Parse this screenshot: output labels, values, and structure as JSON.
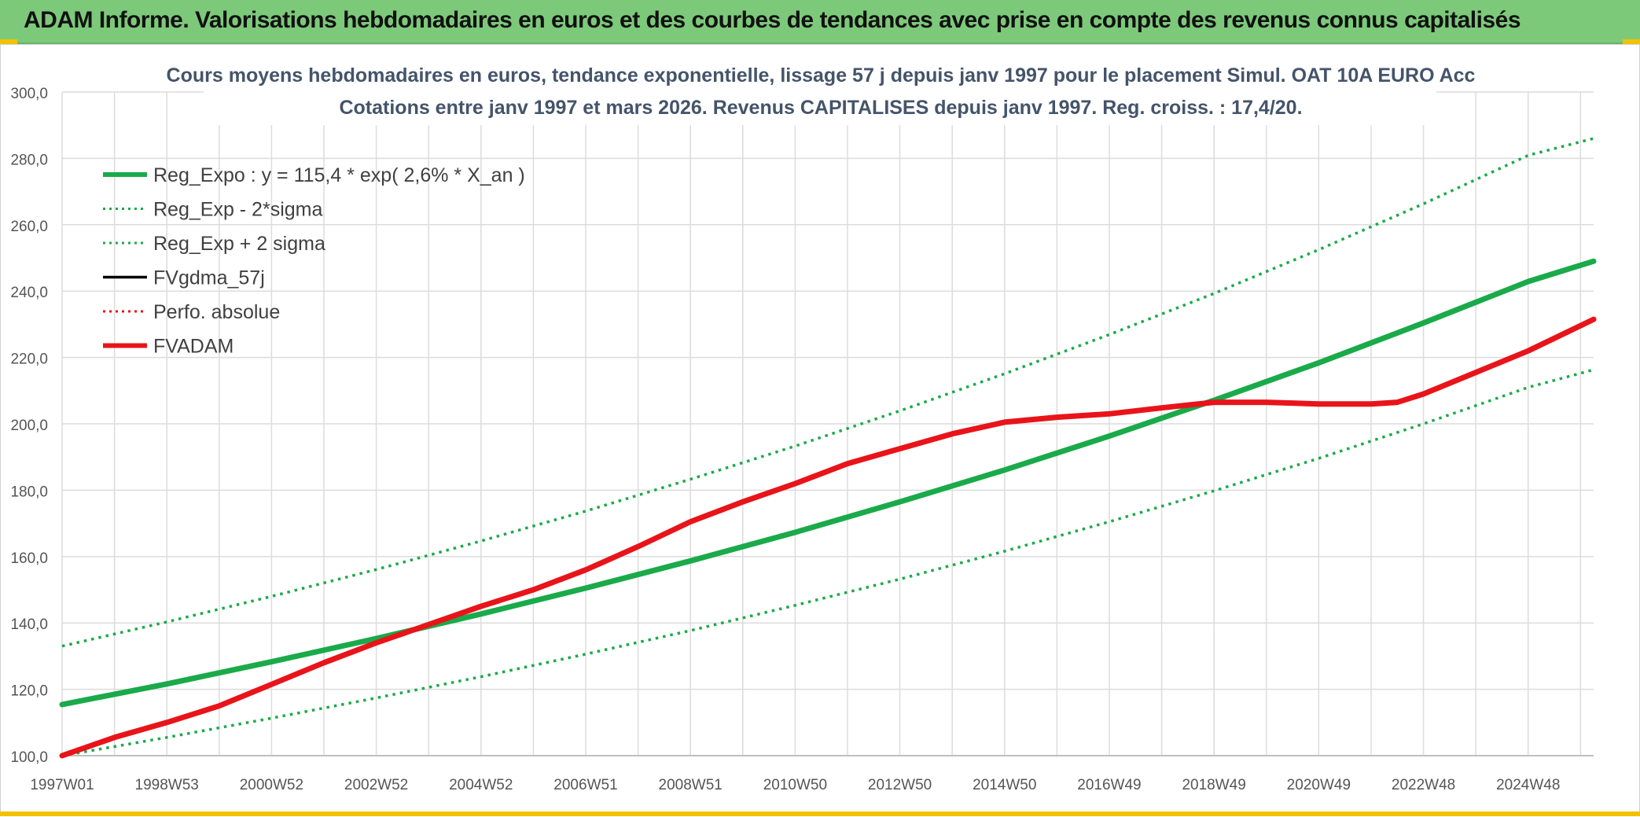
{
  "header": {
    "title": "ADAM Informe. Valorisations hebdomadaires en euros et des courbes de tendances avec prise en compte des revenus connus capitalisés"
  },
  "colors": {
    "header_bg": "#7dc97a",
    "green": "#1aaa4a",
    "red": "#e8141a",
    "black": "#000000",
    "grid": "#dcdcdc",
    "accent_yellow": "#f2c200"
  },
  "chart_data": {
    "type": "line",
    "title_lines": [
      "Cours moyens hebdomadaires en euros, tendance exponentielle, lissage 57 j depuis janv 1997 pour le placement Simul. OAT 10A EURO Acc",
      "Cotations entre janv 1997 et mars 2026. Revenus CAPITALISES depuis janv 1997. Reg. croiss. : 17,4/20."
    ],
    "xlim": [
      1997.0,
      2026.25
    ],
    "ylim": [
      100,
      300
    ],
    "yticks": [
      100,
      120,
      140,
      160,
      180,
      200,
      220,
      240,
      260,
      280,
      300
    ],
    "ytick_labels": [
      "100,0",
      "120,0",
      "140,0",
      "160,0",
      "180,0",
      "200,0",
      "220,0",
      "240,0",
      "260,0",
      "280,0",
      "300,0"
    ],
    "xticks": [
      {
        "label": "1997W01",
        "x": 1997.0
      },
      {
        "label": "1998W53",
        "x": 1999.0
      },
      {
        "label": "2000W52",
        "x": 2001.0
      },
      {
        "label": "2002W52",
        "x": 2003.0
      },
      {
        "label": "2004W52",
        "x": 2005.0
      },
      {
        "label": "2006W51",
        "x": 2007.0
      },
      {
        "label": "2008W51",
        "x": 2009.0
      },
      {
        "label": "2010W50",
        "x": 2011.0
      },
      {
        "label": "2012W50",
        "x": 2013.0
      },
      {
        "label": "2014W50",
        "x": 2015.0
      },
      {
        "label": "2016W49",
        "x": 2017.0
      },
      {
        "label": "2018W49",
        "x": 2019.0
      },
      {
        "label": "2020W49",
        "x": 2021.0
      },
      {
        "label": "2022W48",
        "x": 2023.0
      },
      {
        "label": "2024W48",
        "x": 2025.0
      }
    ],
    "grid": true,
    "legend_position": "top-left",
    "series": [
      {
        "name": "Reg_Expo : y = 115,4 * exp( 2,6% *  X_an )",
        "style": "solid-thick",
        "color": "#1aaa4a",
        "x": [
          1997.0,
          1999.0,
          2001.0,
          2003.0,
          2005.0,
          2007.0,
          2009.0,
          2011.0,
          2013.0,
          2015.0,
          2017.0,
          2019.0,
          2021.0,
          2023.0,
          2025.0,
          2026.25
        ],
        "y": [
          115.4,
          121.6,
          128.3,
          135.3,
          142.7,
          150.5,
          158.7,
          167.3,
          176.5,
          186.1,
          196.3,
          207.1,
          218.4,
          230.4,
          242.9,
          249.0
        ]
      },
      {
        "name": "Reg_Exp - 2*sigma",
        "style": "dotted",
        "color": "#1aaa4a",
        "x": [
          1997.0,
          1999.0,
          2001.0,
          2003.0,
          2005.0,
          2007.0,
          2009.0,
          2011.0,
          2013.0,
          2015.0,
          2017.0,
          2019.0,
          2021.0,
          2023.0,
          2025.0,
          2026.25
        ],
        "y": [
          100.0,
          105.5,
          111.3,
          117.4,
          123.8,
          130.6,
          137.7,
          145.3,
          153.2,
          161.6,
          170.5,
          179.8,
          189.6,
          200.0,
          211.0,
          216.3
        ]
      },
      {
        "name": "Reg_Exp + 2 sigma",
        "style": "dotted",
        "color": "#1aaa4a",
        "x": [
          1997.0,
          1999.0,
          2001.0,
          2003.0,
          2005.0,
          2007.0,
          2009.0,
          2011.0,
          2013.0,
          2015.0,
          2017.0,
          2019.0,
          2021.0,
          2023.0,
          2025.0,
          2026.25
        ],
        "y": [
          133.0,
          140.3,
          148.0,
          156.1,
          164.7,
          173.7,
          183.3,
          193.3,
          203.9,
          215.1,
          226.9,
          239.3,
          252.5,
          266.3,
          280.9,
          286.0
        ]
      },
      {
        "name": "FVgdma_57j",
        "style": "solid",
        "color": "#000000",
        "x": [],
        "y": []
      },
      {
        "name": "Perfo. absolue",
        "style": "dotted",
        "color": "#e8141a",
        "x": [],
        "y": []
      },
      {
        "name": "FVADAM",
        "style": "solid-thick",
        "color": "#e8141a",
        "x": [
          1997.0,
          1998.0,
          1999.0,
          2000.0,
          2001.0,
          2002.0,
          2003.0,
          2004.0,
          2005.0,
          2006.0,
          2007.0,
          2008.0,
          2009.0,
          2010.0,
          2011.0,
          2012.0,
          2013.0,
          2014.0,
          2015.0,
          2016.0,
          2017.0,
          2018.0,
          2019.0,
          2020.0,
          2021.0,
          2022.0,
          2022.5,
          2023.0,
          2024.0,
          2025.0,
          2026.25
        ],
        "y": [
          100.0,
          105.5,
          110.0,
          115.0,
          121.5,
          128.0,
          134.0,
          139.5,
          145.0,
          150.0,
          156.0,
          163.0,
          170.5,
          176.5,
          182.0,
          188.0,
          192.5,
          197.0,
          200.5,
          202.0,
          203.0,
          204.8,
          206.5,
          206.5,
          206.0,
          206.0,
          206.5,
          209.0,
          215.5,
          222.0,
          231.5
        ]
      }
    ]
  }
}
